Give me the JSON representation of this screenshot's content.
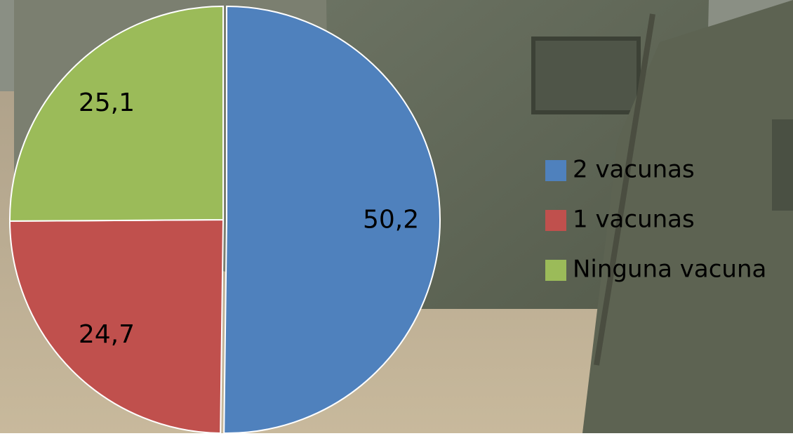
{
  "chart_data": {
    "type": "pie",
    "categories": [
      "2 vacunas",
      "1 vacunas",
      "Ninguna vacuna"
    ],
    "values": [
      50.2,
      24.7,
      25.1
    ],
    "value_labels": [
      "50,2",
      "24,7",
      "25,1"
    ],
    "colors": [
      "#4f81bd",
      "#c0504d",
      "#9bbb59"
    ]
  }
}
